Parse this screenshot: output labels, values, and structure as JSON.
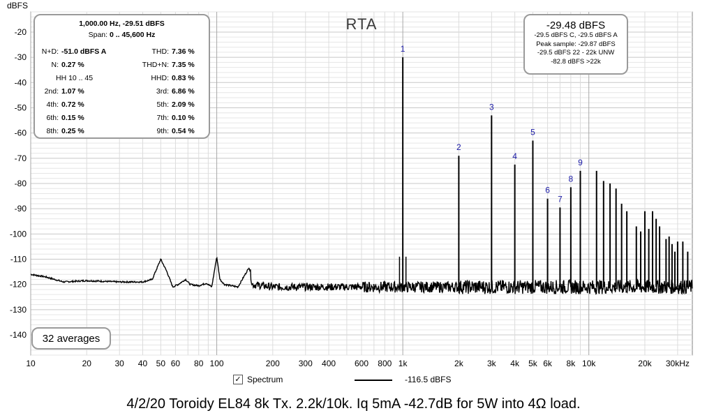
{
  "chart_data": {
    "type": "line",
    "title": "RTA",
    "ylabel": "dBFS",
    "xunit": "kHz",
    "x_scale": "log",
    "xlim": [
      10,
      36000
    ],
    "ylim": [
      -148,
      -12
    ],
    "grid": true,
    "y_ticks": [
      -20,
      -30,
      -40,
      -50,
      -60,
      -70,
      -80,
      -90,
      -100,
      -110,
      -120,
      -130,
      -140
    ],
    "x_ticks": [
      {
        "v": 10,
        "label": "10"
      },
      {
        "v": 20,
        "label": "20"
      },
      {
        "v": 30,
        "label": "30"
      },
      {
        "v": 40,
        "label": "40"
      },
      {
        "v": 50,
        "label": "50"
      },
      {
        "v": 60,
        "label": "60"
      },
      {
        "v": 80,
        "label": "80"
      },
      {
        "v": 100,
        "label": "100"
      },
      {
        "v": 200,
        "label": "200"
      },
      {
        "v": 300,
        "label": "300"
      },
      {
        "v": 400,
        "label": "400"
      },
      {
        "v": 600,
        "label": "600"
      },
      {
        "v": 800,
        "label": "800"
      },
      {
        "v": 1000,
        "label": "1k"
      },
      {
        "v": 2000,
        "label": "2k"
      },
      {
        "v": 3000,
        "label": "3k"
      },
      {
        "v": 4000,
        "label": "4k"
      },
      {
        "v": 5000,
        "label": "5k"
      },
      {
        "v": 6000,
        "label": "6k"
      },
      {
        "v": 8000,
        "label": "8k"
      },
      {
        "v": 10000,
        "label": "10k"
      },
      {
        "v": 20000,
        "label": "20k"
      },
      {
        "v": 30000,
        "label": "30kHz"
      }
    ],
    "noise_floor": [
      [
        10,
        -116
      ],
      [
        12,
        -117
      ],
      [
        15,
        -119
      ],
      [
        20,
        -118.5
      ],
      [
        30,
        -119
      ],
      [
        40,
        -119
      ],
      [
        45,
        -118
      ],
      [
        50,
        -110
      ],
      [
        54,
        -115
      ],
      [
        58,
        -121
      ],
      [
        62,
        -120
      ],
      [
        68,
        -118
      ],
      [
        72,
        -120
      ],
      [
        80,
        -120.5
      ],
      [
        88,
        -119.5
      ],
      [
        94,
        -121
      ],
      [
        100,
        -109
      ],
      [
        104,
        -118
      ],
      [
        110,
        -120
      ],
      [
        130,
        -121
      ],
      [
        150,
        -113
      ],
      [
        155,
        -120
      ],
      [
        200,
        -121
      ],
      [
        400,
        -121
      ],
      [
        1000,
        -121
      ],
      [
        36000,
        -121
      ]
    ],
    "peaks": [
      {
        "f": 1000,
        "db": -30,
        "label": "1"
      },
      {
        "f": 2000,
        "db": -69,
        "label": "2"
      },
      {
        "f": 3000,
        "db": -53,
        "label": "3"
      },
      {
        "f": 4000,
        "db": -72.5,
        "label": "4"
      },
      {
        "f": 5000,
        "db": -63,
        "label": "5"
      },
      {
        "f": 6000,
        "db": -86,
        "label": "6"
      },
      {
        "f": 7000,
        "db": -89.5,
        "label": "7"
      },
      {
        "f": 8000,
        "db": -81.5,
        "label": "8"
      },
      {
        "f": 9000,
        "db": -75,
        "label": "9"
      },
      {
        "f": 11000,
        "db": -75,
        "label": ""
      },
      {
        "f": 12000,
        "db": -79,
        "label": ""
      },
      {
        "f": 13000,
        "db": -80,
        "label": ""
      },
      {
        "f": 14000,
        "db": -82,
        "label": ""
      },
      {
        "f": 15000,
        "db": -88,
        "label": ""
      },
      {
        "f": 16000,
        "db": -91,
        "label": ""
      },
      {
        "f": 18000,
        "db": -97,
        "label": ""
      },
      {
        "f": 19000,
        "db": -99,
        "label": ""
      },
      {
        "f": 20000,
        "db": -91,
        "label": ""
      },
      {
        "f": 21000,
        "db": -98,
        "label": ""
      },
      {
        "f": 22000,
        "db": -91,
        "label": ""
      },
      {
        "f": 23000,
        "db": -94,
        "label": ""
      },
      {
        "f": 24000,
        "db": -97,
        "label": ""
      },
      {
        "f": 26000,
        "db": -102,
        "label": ""
      },
      {
        "f": 27000,
        "db": -101,
        "label": ""
      },
      {
        "f": 28000,
        "db": -104,
        "label": ""
      },
      {
        "f": 29000,
        "db": -107,
        "label": ""
      },
      {
        "f": 30000,
        "db": -103,
        "label": ""
      },
      {
        "f": 32000,
        "db": -103,
        "label": ""
      },
      {
        "f": 34000,
        "db": -107,
        "label": ""
      }
    ],
    "spurs": [
      [
        960,
        -109
      ],
      [
        1040,
        -109
      ]
    ]
  },
  "stats_panel": {
    "header": "1,000.00 Hz, -29.51 dBFS",
    "span_label": "Span: ",
    "span_value": "0 .. 45,600 Hz",
    "rows": [
      [
        {
          "label": "N+D:",
          "value": "-51.0 dBFS A"
        },
        {
          "label": "THD:",
          "value": "7.36 %"
        }
      ],
      [
        {
          "label": "N:",
          "value": "0.27 %"
        },
        {
          "label": "THD+N:",
          "value": "7.35 %"
        }
      ],
      [
        {
          "label": "",
          "value": "HH 10 .. 45"
        },
        {
          "label": "HHD:",
          "value": "0.83 %"
        }
      ],
      [
        {
          "label": "2nd:",
          "value": "1.07 %"
        },
        {
          "label": "3rd:",
          "value": "6.86 %"
        }
      ],
      [
        {
          "label": "4th:",
          "value": "0.72 %"
        },
        {
          "label": "5th:",
          "value": "2.09 %"
        }
      ],
      [
        {
          "label": "6th:",
          "value": "0.15 %"
        },
        {
          "label": "7th:",
          "value": "0.10 %"
        }
      ],
      [
        {
          "label": "8th:",
          "value": "0.25 %"
        },
        {
          "label": "9th:",
          "value": "0.54 %"
        }
      ]
    ]
  },
  "level_panel": {
    "main": "-29.48 dBFS",
    "line1": "-29.5 dBFS C, -29.5 dBFS A",
    "line2": "Peak sample: -29.87 dBFS",
    "line3": "-29.5 dBFS 22 - 22k UNW",
    "line4": "-82.8 dBFS >22k"
  },
  "averages_label": "32 averages",
  "legend": {
    "checkbox_label": "Spectrum",
    "checked": true,
    "trace_value": "-116.5 dBFS"
  },
  "caption": "4/2/20 Toroidy EL84 8k Tx. 2.2k/10k. Iq 5mA -42.7dB for 5W into 4Ω load."
}
